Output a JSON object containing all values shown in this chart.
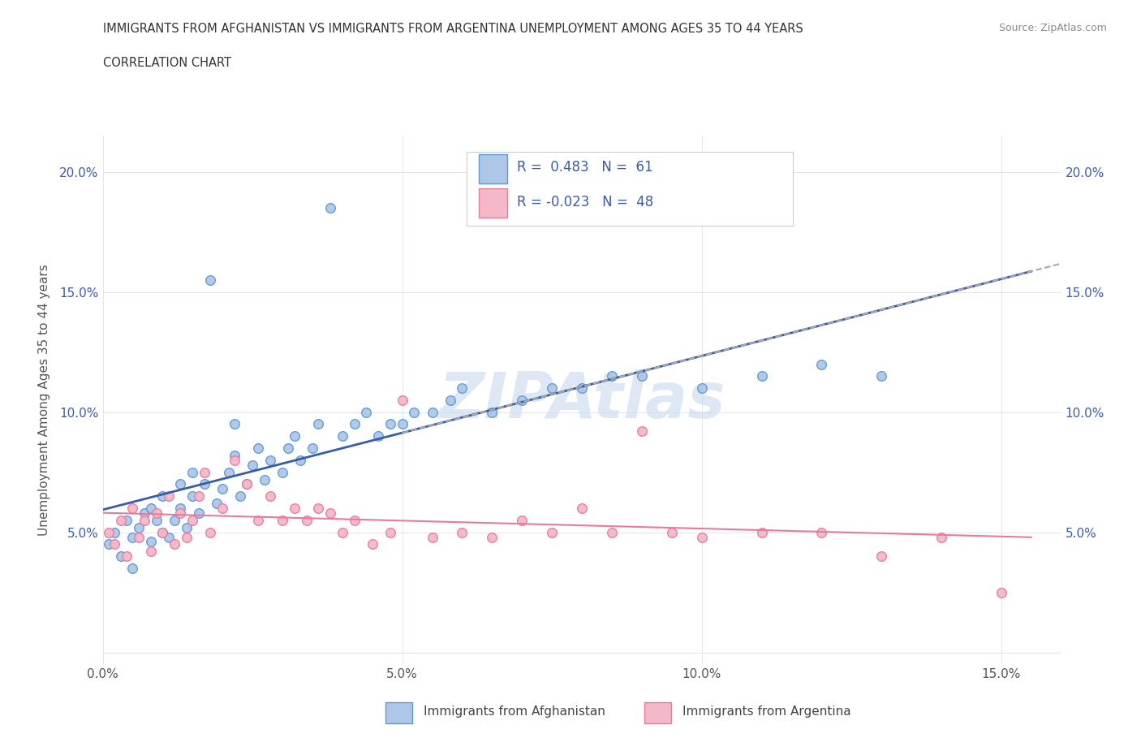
{
  "title_line1": "IMMIGRANTS FROM AFGHANISTAN VS IMMIGRANTS FROM ARGENTINA UNEMPLOYMENT AMONG AGES 35 TO 44 YEARS",
  "title_line2": "CORRELATION CHART",
  "source": "Source: ZipAtlas.com",
  "ylabel": "Unemployment Among Ages 35 to 44 years",
  "xlim": [
    0.0,
    0.16
  ],
  "ylim": [
    -0.005,
    0.215
  ],
  "xticks": [
    0.0,
    0.05,
    0.1,
    0.15
  ],
  "xticklabels": [
    "0.0%",
    "5.0%",
    "10.0%",
    "15.0%"
  ],
  "yticks": [
    0.0,
    0.05,
    0.1,
    0.15,
    0.2
  ],
  "yticklabels": [
    "",
    "5.0%",
    "10.0%",
    "15.0%",
    "20.0%"
  ],
  "afghanistan_fill": "#aec6e8",
  "afghanistan_edge": "#5b9bd5",
  "argentina_fill": "#f5b8c8",
  "argentina_edge": "#e87a9a",
  "line_afghanistan_color": "#3a5ca8",
  "line_argentina_color": "#e87a9a",
  "line_dashed_color": "#aaaaaa",
  "R_afghanistan": 0.483,
  "N_afghanistan": 61,
  "R_argentina": -0.023,
  "N_argentina": 48,
  "legend_text_color": "#3a5ca8",
  "watermark_color": "#d0dff0",
  "source_color": "#888888",
  "title_color": "#333333",
  "tick_color": "#3a5ca8",
  "ylabel_color": "#555555",
  "grid_color": "#e0e0e0",
  "afg_x": [
    0.001,
    0.002,
    0.003,
    0.004,
    0.005,
    0.005,
    0.006,
    0.007,
    0.008,
    0.008,
    0.009,
    0.01,
    0.01,
    0.011,
    0.012,
    0.013,
    0.013,
    0.014,
    0.015,
    0.015,
    0.016,
    0.017,
    0.018,
    0.019,
    0.02,
    0.021,
    0.022,
    0.022,
    0.023,
    0.024,
    0.025,
    0.026,
    0.027,
    0.028,
    0.03,
    0.031,
    0.032,
    0.033,
    0.035,
    0.036,
    0.038,
    0.04,
    0.042,
    0.044,
    0.046,
    0.048,
    0.05,
    0.052,
    0.055,
    0.058,
    0.06,
    0.065,
    0.07,
    0.075,
    0.08,
    0.085,
    0.09,
    0.1,
    0.11,
    0.12,
    0.13
  ],
  "afg_y": [
    0.045,
    0.05,
    0.04,
    0.055,
    0.048,
    0.035,
    0.052,
    0.058,
    0.046,
    0.06,
    0.055,
    0.05,
    0.065,
    0.048,
    0.055,
    0.06,
    0.07,
    0.052,
    0.065,
    0.075,
    0.058,
    0.07,
    0.155,
    0.062,
    0.068,
    0.075,
    0.082,
    0.095,
    0.065,
    0.07,
    0.078,
    0.085,
    0.072,
    0.08,
    0.075,
    0.085,
    0.09,
    0.08,
    0.085,
    0.095,
    0.185,
    0.09,
    0.095,
    0.1,
    0.09,
    0.095,
    0.095,
    0.1,
    0.1,
    0.105,
    0.11,
    0.1,
    0.105,
    0.11,
    0.11,
    0.115,
    0.115,
    0.11,
    0.115,
    0.12,
    0.115
  ],
  "arg_x": [
    0.001,
    0.002,
    0.003,
    0.004,
    0.005,
    0.006,
    0.007,
    0.008,
    0.009,
    0.01,
    0.011,
    0.012,
    0.013,
    0.014,
    0.015,
    0.016,
    0.017,
    0.018,
    0.02,
    0.022,
    0.024,
    0.026,
    0.028,
    0.03,
    0.032,
    0.034,
    0.036,
    0.038,
    0.04,
    0.042,
    0.045,
    0.048,
    0.05,
    0.055,
    0.06,
    0.065,
    0.07,
    0.075,
    0.08,
    0.085,
    0.09,
    0.095,
    0.1,
    0.11,
    0.12,
    0.13,
    0.14,
    0.15
  ],
  "arg_y": [
    0.05,
    0.045,
    0.055,
    0.04,
    0.06,
    0.048,
    0.055,
    0.042,
    0.058,
    0.05,
    0.065,
    0.045,
    0.058,
    0.048,
    0.055,
    0.065,
    0.075,
    0.05,
    0.06,
    0.08,
    0.07,
    0.055,
    0.065,
    0.055,
    0.06,
    0.055,
    0.06,
    0.058,
    0.05,
    0.055,
    0.045,
    0.05,
    0.105,
    0.048,
    0.05,
    0.048,
    0.055,
    0.05,
    0.06,
    0.05,
    0.092,
    0.05,
    0.048,
    0.05,
    0.05,
    0.04,
    0.048,
    0.025
  ]
}
